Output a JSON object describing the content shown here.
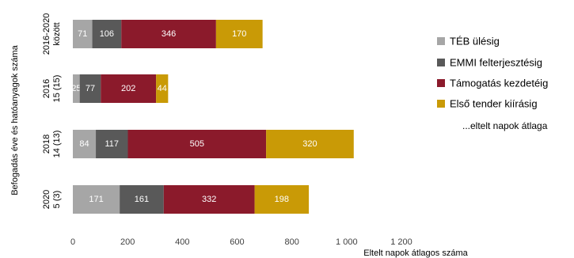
{
  "chart_data": {
    "type": "bar",
    "orientation": "horizontal",
    "stacked": true,
    "categories": [
      [
        "2016-2020",
        "között"
      ],
      [
        "2016",
        "15 (15)"
      ],
      [
        "2018",
        "14 (13)"
      ],
      [
        "2020",
        "5 (3)"
      ]
    ],
    "series": [
      {
        "name": "TÉB ülésig",
        "color": "#a6a6a6",
        "values": [
          71,
          25,
          84,
          171
        ]
      },
      {
        "name": "EMMI felterjesztésig",
        "color": "#595959",
        "values": [
          106,
          77,
          117,
          161
        ]
      },
      {
        "name": "Támogatás kezdetéig",
        "color": "#8b1a2b",
        "values": [
          346,
          202,
          505,
          332
        ]
      },
      {
        "name": "Első tender kiírásig",
        "color": "#c99a06",
        "values": [
          170,
          44,
          320,
          198
        ]
      }
    ],
    "legend_note": "...eltelt napok átlaga",
    "xlabel": "Eltelt napok átlagos száma",
    "ylabel": "Befogadás éve és hatóanyagok száma",
    "xticks": [
      "0",
      "200",
      "400",
      "600",
      "800",
      "1 000",
      "1 200"
    ],
    "xlim": [
      0,
      1200
    ],
    "grid": false,
    "legend_position": "right"
  }
}
